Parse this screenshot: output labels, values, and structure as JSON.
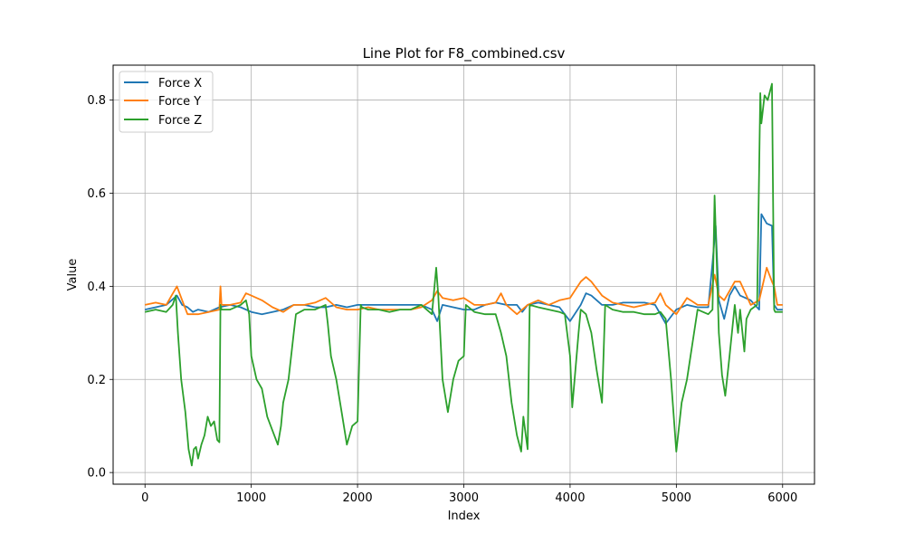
{
  "chart_data": {
    "type": "line",
    "title": "Line Plot for F8_combined.csv",
    "xlabel": "Index",
    "ylabel": "Value",
    "xlim": [
      -300,
      6300
    ],
    "ylim": [
      -0.025,
      0.875
    ],
    "xticks": [
      0,
      1000,
      2000,
      3000,
      4000,
      5000,
      6000
    ],
    "xtick_labels": [
      "0",
      "1000",
      "2000",
      "3000",
      "4000",
      "5000",
      "6000"
    ],
    "yticks": [
      0.0,
      0.2,
      0.4,
      0.6,
      0.8
    ],
    "ytick_labels": [
      "0.0",
      "0.2",
      "0.4",
      "0.6",
      "0.8"
    ],
    "grid": true,
    "legend_position": "top-left",
    "series": [
      {
        "name": "Force X",
        "color": "#1f77b4",
        "x": [
          0,
          100,
          200,
          300,
          350,
          400,
          450,
          500,
          600,
          700,
          800,
          900,
          1000,
          1100,
          1200,
          1300,
          1400,
          1500,
          1600,
          1700,
          1800,
          1900,
          2000,
          2100,
          2200,
          2300,
          2400,
          2500,
          2600,
          2700,
          2750,
          2800,
          2900,
          3000,
          3100,
          3200,
          3300,
          3400,
          3500,
          3550,
          3600,
          3700,
          3800,
          3900,
          4000,
          4100,
          4150,
          4200,
          4300,
          4400,
          4500,
          4600,
          4700,
          4800,
          4900,
          5000,
          5100,
          5200,
          5300,
          5340,
          5370,
          5400,
          5450,
          5500,
          5550,
          5600,
          5700,
          5780,
          5800,
          5850,
          5900,
          5920,
          5950,
          6000
        ],
        "y": [
          0.35,
          0.355,
          0.36,
          0.38,
          0.36,
          0.355,
          0.345,
          0.35,
          0.345,
          0.355,
          0.36,
          0.355,
          0.345,
          0.34,
          0.345,
          0.35,
          0.36,
          0.36,
          0.355,
          0.355,
          0.36,
          0.355,
          0.36,
          0.36,
          0.36,
          0.36,
          0.36,
          0.36,
          0.36,
          0.35,
          0.325,
          0.36,
          0.355,
          0.35,
          0.35,
          0.36,
          0.365,
          0.36,
          0.36,
          0.345,
          0.36,
          0.365,
          0.36,
          0.355,
          0.325,
          0.36,
          0.385,
          0.38,
          0.36,
          0.36,
          0.365,
          0.365,
          0.365,
          0.36,
          0.32,
          0.35,
          0.36,
          0.355,
          0.355,
          0.45,
          0.53,
          0.37,
          0.33,
          0.38,
          0.4,
          0.38,
          0.37,
          0.35,
          0.555,
          0.535,
          0.53,
          0.36,
          0.35,
          0.35
        ]
      },
      {
        "name": "Force Y",
        "color": "#ff7f0e",
        "x": [
          0,
          100,
          200,
          250,
          300,
          350,
          400,
          500,
          600,
          700,
          710,
          720,
          800,
          900,
          950,
          1000,
          1100,
          1200,
          1300,
          1400,
          1500,
          1600,
          1700,
          1800,
          1900,
          2000,
          2100,
          2200,
          2300,
          2400,
          2500,
          2600,
          2700,
          2750,
          2800,
          2900,
          3000,
          3100,
          3200,
          3300,
          3350,
          3400,
          3500,
          3600,
          3700,
          3800,
          3900,
          4000,
          4100,
          4150,
          4200,
          4300,
          4400,
          4500,
          4600,
          4700,
          4800,
          4850,
          4900,
          5000,
          5100,
          5200,
          5300,
          5360,
          5400,
          5450,
          5500,
          5550,
          5600,
          5700,
          5780,
          5800,
          5850,
          5900,
          5920,
          5950,
          6000
        ],
        "y": [
          0.36,
          0.365,
          0.36,
          0.38,
          0.4,
          0.37,
          0.34,
          0.34,
          0.345,
          0.35,
          0.4,
          0.36,
          0.36,
          0.365,
          0.385,
          0.38,
          0.37,
          0.355,
          0.345,
          0.36,
          0.36,
          0.365,
          0.375,
          0.355,
          0.35,
          0.35,
          0.355,
          0.35,
          0.35,
          0.35,
          0.35,
          0.355,
          0.37,
          0.39,
          0.375,
          0.37,
          0.375,
          0.36,
          0.36,
          0.365,
          0.385,
          0.36,
          0.34,
          0.36,
          0.37,
          0.36,
          0.37,
          0.375,
          0.41,
          0.42,
          0.41,
          0.38,
          0.365,
          0.36,
          0.355,
          0.36,
          0.365,
          0.385,
          0.36,
          0.34,
          0.375,
          0.36,
          0.36,
          0.425,
          0.38,
          0.37,
          0.39,
          0.41,
          0.41,
          0.36,
          0.37,
          0.39,
          0.44,
          0.41,
          0.4,
          0.36,
          0.36
        ]
      },
      {
        "name": "Force Z",
        "color": "#2ca02c",
        "x": [
          0,
          100,
          200,
          260,
          290,
          310,
          340,
          380,
          410,
          440,
          460,
          480,
          500,
          530,
          560,
          590,
          620,
          650,
          680,
          700,
          710,
          720,
          800,
          900,
          950,
          980,
          1000,
          1050,
          1100,
          1150,
          1200,
          1250,
          1280,
          1300,
          1350,
          1400,
          1420,
          1500,
          1600,
          1700,
          1720,
          1750,
          1800,
          1850,
          1900,
          1950,
          2000,
          2030,
          2040,
          2100,
          2200,
          2300,
          2400,
          2500,
          2600,
          2650,
          2700,
          2740,
          2760,
          2800,
          2850,
          2900,
          2950,
          3000,
          3020,
          3100,
          3200,
          3300,
          3350,
          3400,
          3450,
          3500,
          3540,
          3560,
          3600,
          3620,
          3700,
          3800,
          3900,
          3950,
          4000,
          4020,
          4080,
          4100,
          4150,
          4200,
          4250,
          4300,
          4330,
          4400,
          4500,
          4600,
          4700,
          4800,
          4850,
          4900,
          4950,
          5000,
          5050,
          5100,
          5200,
          5250,
          5300,
          5340,
          5360,
          5380,
          5400,
          5430,
          5460,
          5500,
          5550,
          5580,
          5600,
          5640,
          5660,
          5700,
          5760,
          5790,
          5800,
          5830,
          5860,
          5900,
          5920,
          5930,
          5950,
          6000
        ],
        "y": [
          0.345,
          0.35,
          0.345,
          0.36,
          0.38,
          0.3,
          0.2,
          0.13,
          0.05,
          0.015,
          0.05,
          0.055,
          0.03,
          0.06,
          0.08,
          0.12,
          0.1,
          0.11,
          0.07,
          0.065,
          0.36,
          0.35,
          0.35,
          0.36,
          0.37,
          0.34,
          0.25,
          0.2,
          0.18,
          0.12,
          0.09,
          0.06,
          0.1,
          0.15,
          0.2,
          0.3,
          0.34,
          0.35,
          0.35,
          0.36,
          0.32,
          0.25,
          0.2,
          0.13,
          0.06,
          0.1,
          0.11,
          0.36,
          0.355,
          0.35,
          0.35,
          0.345,
          0.35,
          0.35,
          0.36,
          0.35,
          0.34,
          0.44,
          0.38,
          0.2,
          0.13,
          0.2,
          0.24,
          0.25,
          0.36,
          0.345,
          0.34,
          0.34,
          0.3,
          0.25,
          0.15,
          0.08,
          0.045,
          0.12,
          0.05,
          0.36,
          0.355,
          0.35,
          0.345,
          0.34,
          0.25,
          0.14,
          0.3,
          0.35,
          0.34,
          0.3,
          0.22,
          0.15,
          0.36,
          0.35,
          0.345,
          0.345,
          0.34,
          0.34,
          0.345,
          0.33,
          0.2,
          0.045,
          0.15,
          0.2,
          0.35,
          0.345,
          0.34,
          0.35,
          0.595,
          0.45,
          0.3,
          0.21,
          0.165,
          0.25,
          0.36,
          0.3,
          0.35,
          0.26,
          0.33,
          0.35,
          0.36,
          0.815,
          0.75,
          0.81,
          0.8,
          0.835,
          0.35,
          0.345,
          0.345,
          0.345
        ]
      }
    ]
  }
}
